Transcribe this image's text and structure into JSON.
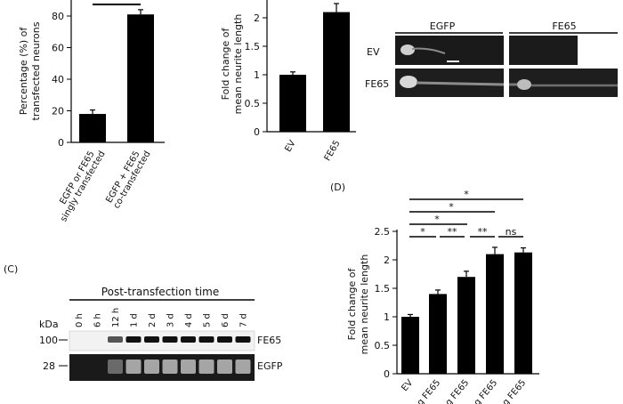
{
  "panel_a": {
    "ylabel_line1": "Percentage (%) of",
    "ylabel_line2": "transfected neurons",
    "ticks": [
      "0",
      "20",
      "40",
      "60",
      "80"
    ],
    "xcat1_line1": "EGFP or FE65",
    "xcat1_line2": "singly transfected",
    "xcat2_line1": "EGFP + FE65",
    "xcat2_line2": "co-transfected"
  },
  "panel_b": {
    "ylabel_line1": "Fold change of",
    "ylabel_line2": "mean neurite length",
    "ticks": [
      "0",
      "0.5",
      "1",
      "1.5",
      "2"
    ],
    "cats": [
      "EV",
      "FE65"
    ]
  },
  "images": {
    "col_egfp": "EGFP",
    "col_fe65": "FE65",
    "row_ev": "EV",
    "row_fe65": "FE65"
  },
  "panel_c": {
    "label": "(C)",
    "title": "Post-transfection time",
    "kda": "kDa",
    "times": [
      "0 h",
      "6 h",
      "12 h",
      "1 d",
      "2 d",
      "3 d",
      "4 d",
      "5 d",
      "6 d",
      "7 d"
    ],
    "marker_100": "100",
    "marker_28": "28",
    "band_fe65": "FE65",
    "band_egfp": "EGFP"
  },
  "panel_d": {
    "label": "(D)",
    "ylabel_line1": "Fold change of",
    "ylabel_line2": "mean neurite length",
    "ticks": [
      "0",
      "0.5",
      "1",
      "1.5",
      "2",
      "2.5"
    ],
    "cats": [
      "EV",
      "g FE65",
      "g FE65",
      "g FE65",
      "g FE65"
    ],
    "sig": [
      "*",
      "*",
      "*",
      "*",
      "**",
      "**",
      "ns"
    ]
  },
  "chart_data": [
    {
      "type": "bar",
      "categories": [
        "EGFP or FE65 singly transfected",
        "EGFP + FE65 co-transfected"
      ],
      "values": [
        18,
        81
      ],
      "errors": [
        2.5,
        3
      ],
      "ylabel": "Percentage (%) of transfected neurons",
      "ylim": [
        0,
        90
      ]
    },
    {
      "type": "bar",
      "categories": [
        "EV",
        "FE65"
      ],
      "values": [
        1.0,
        2.1
      ],
      "errors": [
        0.05,
        0.15
      ],
      "ylabel": "Fold change of mean neurite length",
      "ylim": [
        0,
        2.3
      ]
    },
    {
      "type": "bar",
      "categories": [
        "EV",
        "g FE65",
        "g FE65",
        "g FE65",
        "g FE65"
      ],
      "values": [
        1.0,
        1.4,
        1.7,
        2.1,
        2.13
      ],
      "errors": [
        0.04,
        0.07,
        0.1,
        0.12,
        0.08
      ],
      "ylabel": "Fold change of mean neurite length",
      "ylim": [
        0,
        2.5
      ]
    }
  ]
}
